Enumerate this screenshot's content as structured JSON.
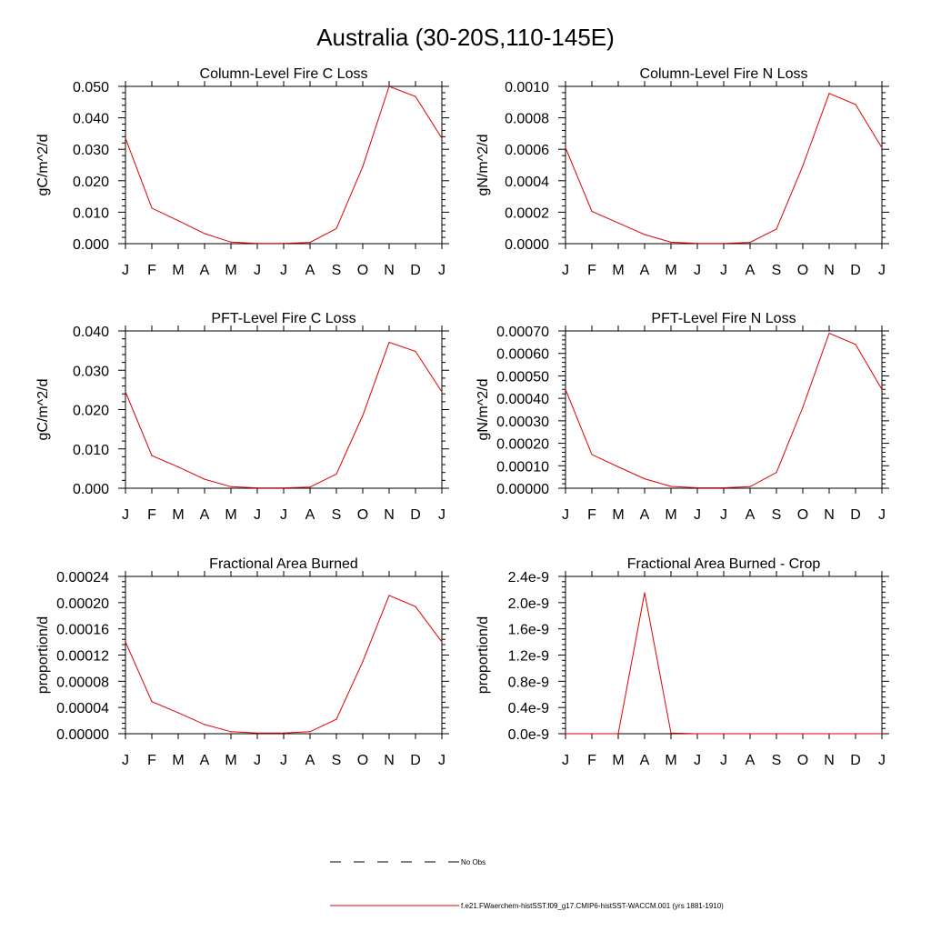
{
  "figure": {
    "title": "Australia (30-20S,110-145E)"
  },
  "legend": {
    "obs_label": "No Obs",
    "model_label": "f.e21.FWaerchem-histSST.f09_g17.CMIP6-histSST-WACCM.001 (yrs 1881-1910)"
  },
  "colors": {
    "model_line": "#e00000",
    "obs_line": "#000000",
    "axis": "#000000",
    "background": "#ffffff"
  },
  "chart_data": [
    {
      "type": "line",
      "title": "Column-Level Fire C Loss",
      "ylabel": "gC/m^2/d",
      "xlabel": "",
      "categories": [
        "J",
        "F",
        "M",
        "A",
        "M",
        "J",
        "J",
        "A",
        "S",
        "O",
        "N",
        "D",
        "J"
      ],
      "ylim": [
        0,
        0.05
      ],
      "yticks": [
        "0.000",
        "0.010",
        "0.020",
        "0.030",
        "0.040",
        "0.050"
      ],
      "series": [
        {
          "values": [
            0.0335,
            0.0113,
            0.0073,
            0.0032,
            0.0005,
            0.0001,
            0.0001,
            0.0004,
            0.0048,
            0.0245,
            0.05,
            0.0468,
            0.0335
          ]
        }
      ]
    },
    {
      "type": "line",
      "title": "Column-Level Fire N Loss",
      "ylabel": "gN/m^2/d",
      "xlabel": "",
      "categories": [
        "J",
        "F",
        "M",
        "A",
        "M",
        "J",
        "J",
        "A",
        "S",
        "O",
        "N",
        "D",
        "J"
      ],
      "ylim": [
        0,
        0.001
      ],
      "yticks": [
        "0.0000",
        "0.0002",
        "0.0004",
        "0.0006",
        "0.0008",
        "0.0010"
      ],
      "series": [
        {
          "values": [
            0.00061,
            0.000205,
            0.000132,
            5.8e-05,
            9e-06,
            2e-06,
            2e-06,
            8e-06,
            9.3e-05,
            0.000495,
            0.000955,
            0.000885,
            0.00061
          ]
        }
      ]
    },
    {
      "type": "line",
      "title": "PFT-Level Fire C Loss",
      "ylabel": "gC/m^2/d",
      "xlabel": "",
      "categories": [
        "J",
        "F",
        "M",
        "A",
        "M",
        "J",
        "J",
        "A",
        "S",
        "O",
        "N",
        "D",
        "J"
      ],
      "ylim": [
        0,
        0.04
      ],
      "yticks": [
        "0.000",
        "0.010",
        "0.020",
        "0.030",
        "0.040"
      ],
      "series": [
        {
          "values": [
            0.0245,
            0.0083,
            0.0054,
            0.0023,
            0.0004,
            0.0001,
            0.0001,
            0.0003,
            0.0036,
            0.0185,
            0.0371,
            0.0348,
            0.0245
          ]
        }
      ]
    },
    {
      "type": "line",
      "title": "PFT-Level Fire N Loss",
      "ylabel": "gN/m^2/d",
      "xlabel": "",
      "categories": [
        "J",
        "F",
        "M",
        "A",
        "M",
        "J",
        "J",
        "A",
        "S",
        "O",
        "N",
        "D",
        "J"
      ],
      "ylim": [
        0,
        0.0007
      ],
      "yticks": [
        "0.00000",
        "0.00010",
        "0.00020",
        "0.00030",
        "0.00040",
        "0.00050",
        "0.00060",
        "0.00070"
      ],
      "series": [
        {
          "values": [
            0.00044,
            0.00015,
            9.5e-05,
            4.2e-05,
            8e-06,
            2e-06,
            2e-06,
            7e-06,
            7e-05,
            0.00036,
            0.00069,
            0.00064,
            0.00044
          ]
        }
      ]
    },
    {
      "type": "line",
      "title": "Fractional Area Burned",
      "ylabel": "proportion/d",
      "xlabel": "",
      "categories": [
        "J",
        "F",
        "M",
        "A",
        "M",
        "J",
        "J",
        "A",
        "S",
        "O",
        "N",
        "D",
        "J"
      ],
      "ylim": [
        0,
        0.00024
      ],
      "yticks": [
        "0.00000",
        "0.00004",
        "0.00008",
        "0.00012",
        "0.00016",
        "0.00020",
        "0.00024"
      ],
      "series": [
        {
          "values": [
            0.00014,
            4.9e-05,
            3.2e-05,
            1.4e-05,
            3e-06,
            1e-06,
            1e-06,
            3e-06,
            2.2e-05,
            0.00011,
            0.000211,
            0.000194,
            0.00014
          ]
        }
      ]
    },
    {
      "type": "line",
      "title": "Fractional Area Burned - Crop",
      "ylabel": "proportion/d",
      "xlabel": "",
      "categories": [
        "J",
        "F",
        "M",
        "A",
        "M",
        "J",
        "J",
        "A",
        "S",
        "O",
        "N",
        "D",
        "J"
      ],
      "ylim": [
        0,
        2.4e-09
      ],
      "yticks": [
        "0.0e-9",
        "0.4e-9",
        "0.8e-9",
        "1.2e-9",
        "1.6e-9",
        "2.0e-9",
        "2.4e-9"
      ],
      "series": [
        {
          "values": [
            0,
            0,
            0,
            2.15e-09,
            1e-11,
            0,
            0,
            0,
            0,
            0,
            0,
            0,
            0
          ]
        }
      ]
    }
  ]
}
